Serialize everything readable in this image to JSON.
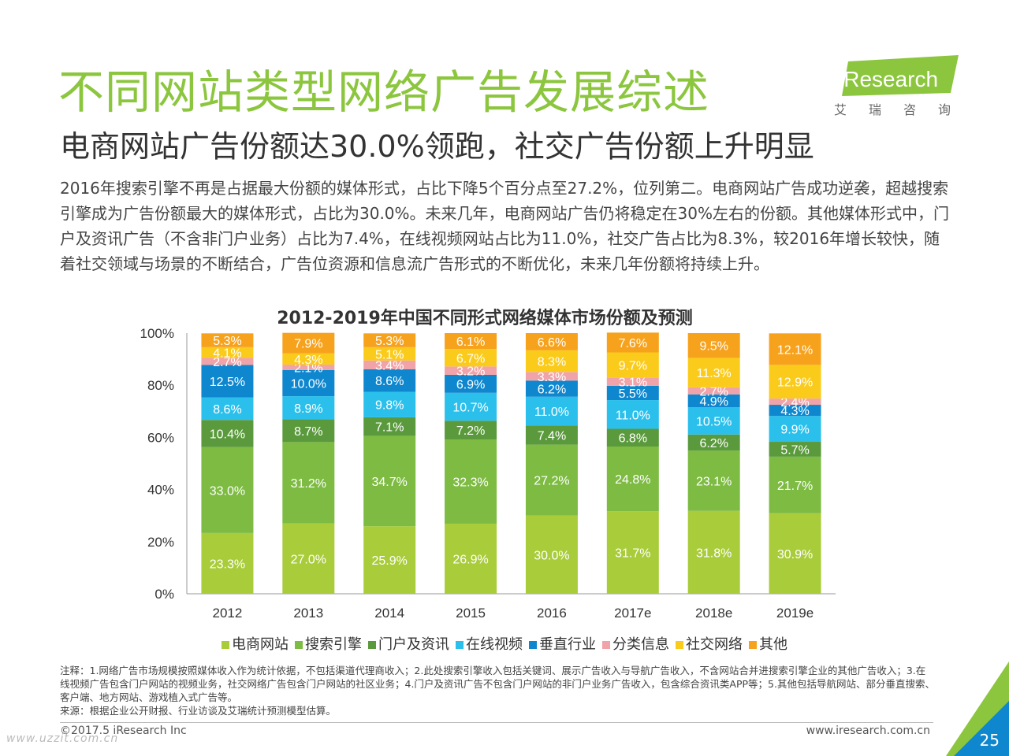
{
  "header": {
    "title": "不同网站类型网络广告发展综述",
    "subtitle": "电商网站广告份额达30.0%领跑，社交广告份额上升明显",
    "description": "2016年搜索引擎不再是占据最大份额的媒体形式，占比下降5个百分点至27.2%，位列第二。电商网站广告成功逆袭，超越搜索引擎成为广告份额最大的媒体形式，占比为30.0%。未来几年，电商网站广告仍将稳定在30%左右的份额。其他媒体形式中，门户及资讯广告（不含非门户业务）占比为7.4%，在线视频网站占比为11.0%，社交广告占比为8.3%，较2016年增长较快，随着社交领域与场景的不断结合，广告位资源和信息流广告形式的不断优化，未来几年份额将持续上升。"
  },
  "logo": {
    "text": "iResearch",
    "cn": "艾瑞咨询",
    "color": "#8cc63e"
  },
  "chart_data": {
    "type": "bar",
    "stacked": true,
    "title": "2012-2019年中国不同形式网络媒体市场份额及预测",
    "categories": [
      "2012",
      "2013",
      "2014",
      "2015",
      "2016",
      "2017e",
      "2018e",
      "2019e"
    ],
    "yticks": [
      "0%",
      "20%",
      "40%",
      "60%",
      "80%",
      "100%"
    ],
    "ylim": [
      0,
      100
    ],
    "series": [
      {
        "name": "电商网站",
        "color": "#a9cc3a",
        "label_color": "#ffffff",
        "values": [
          23.3,
          27.0,
          25.9,
          26.9,
          30.0,
          31.7,
          31.8,
          30.9
        ],
        "labels": [
          "23.3%",
          "27.0%",
          "25.9%",
          "26.9%",
          "30.0%",
          "31.7%",
          "31.8%",
          "30.9%"
        ]
      },
      {
        "name": "搜索引擎",
        "color": "#7dbb42",
        "label_color": "#ffffff",
        "values": [
          33.0,
          31.2,
          34.7,
          32.3,
          27.2,
          24.8,
          23.1,
          21.7
        ],
        "labels": [
          "33.0%",
          "31.2%",
          "34.7%",
          "32.3%",
          "27.2%",
          "24.8%",
          "23.1%",
          "21.7%"
        ]
      },
      {
        "name": "门户及资讯",
        "color": "#5a9a3c",
        "label_color": "#ffffff",
        "values": [
          10.4,
          8.7,
          7.1,
          7.2,
          7.4,
          6.8,
          6.2,
          5.7
        ],
        "labels": [
          "10.4%",
          "8.7%",
          "7.1%",
          "7.2%",
          "7.4%",
          "6.8%",
          "6.2%",
          "5.7%"
        ]
      },
      {
        "name": "在线视频",
        "color": "#2bc0ec",
        "label_color": "#ffffff",
        "values": [
          8.6,
          8.9,
          9.8,
          10.7,
          11.0,
          11.0,
          10.5,
          9.9
        ],
        "labels": [
          "8.6%",
          "8.9%",
          "9.8%",
          "10.7%",
          "11.0%",
          "11.0%",
          "10.5%",
          "9.9%"
        ]
      },
      {
        "name": "垂直行业",
        "color": "#0e87cf",
        "label_color": "#ffffff",
        "values": [
          12.5,
          10.0,
          8.6,
          6.9,
          6.2,
          5.5,
          4.9,
          4.3
        ],
        "labels": [
          "12.5%",
          "10.0%",
          "8.6%",
          "6.9%",
          "6.2%",
          "5.5%",
          "4.9%",
          "4.3%"
        ]
      },
      {
        "name": "分类信息",
        "color": "#f0a3a8",
        "label_color": "#ffffff",
        "values": [
          2.7,
          2.1,
          3.4,
          3.2,
          3.3,
          3.1,
          2.7,
          2.4
        ],
        "labels": [
          "2.7%",
          "2.1%",
          "3.4%",
          "3.2%",
          "3.3%",
          "3.1%",
          "2.7%",
          "2.4%"
        ]
      },
      {
        "name": "社交网络",
        "color": "#fbcb1b",
        "label_color": "#ffffff",
        "values": [
          4.1,
          4.3,
          5.1,
          6.7,
          8.3,
          9.7,
          11.3,
          12.9
        ],
        "labels": [
          "4.1%",
          "4.3%",
          "5.1%",
          "6.7%",
          "8.3%",
          "9.7%",
          "11.3%",
          "12.9%"
        ]
      },
      {
        "name": "其他",
        "color": "#f7a21d",
        "label_color": "#ffffff",
        "values": [
          5.3,
          7.9,
          5.3,
          6.1,
          6.6,
          7.6,
          9.5,
          12.1
        ],
        "labels": [
          "5.3%",
          "7.9%",
          "5.3%",
          "6.1%",
          "6.6%",
          "7.6%",
          "9.5%",
          "12.1%"
        ]
      }
    ],
    "legend_position": "bottom",
    "grid": false
  },
  "footer": {
    "notes": "注释：1.网络广告市场规模按照媒体收入作为统计依据，不包括渠道代理商收入；2.此处搜索引擎收入包括关键词、展示广告收入与导航广告收入，不含网站合并进搜索引擎企业的其他广告收入；3.在线视频广告包含门户网站的视频业务，社交网络广告包含门户网站的社区业务；4.门户及资讯广告不包含门户网站的非门户业务广告收入，包含综合资讯类APP等；5.其他包括导航网站、部分垂直搜索、客户端、地方网站、游戏植入式广告等。",
    "source": "来源：根据企业公开财报、行业访谈及艾瑞统计预测模型估算。",
    "copyright": "©2017.5 iResearch Inc",
    "website": "www.iresearch.com.cn",
    "page_number": "25",
    "watermark": "www.uzzit.com.cn"
  }
}
